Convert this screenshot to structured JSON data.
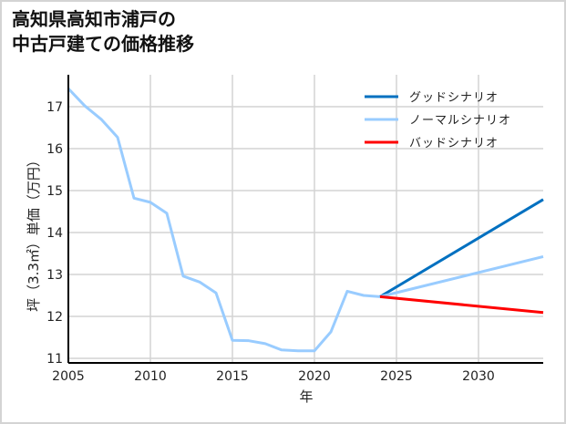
{
  "title_lines": [
    "高知県高知市浦戸の",
    "中古戸建ての価格推移"
  ],
  "chart_data": {
    "type": "line",
    "title": "高知県高知市浦戸の中古戸建ての価格推移",
    "xlabel": "年",
    "ylabel": "坪（3.3㎡）単価（万円）",
    "xlim": [
      2005,
      2034
    ],
    "ylim": [
      10.9,
      17.6
    ],
    "xticks": [
      2005,
      2010,
      2015,
      2020,
      2025,
      2030
    ],
    "yticks": [
      11,
      12,
      13,
      14,
      15,
      16,
      17
    ],
    "grid": true,
    "legend_position": "upper right",
    "historical": {
      "x": [
        2005,
        2006,
        2007,
        2008,
        2009,
        2010,
        2011,
        2012,
        2013,
        2014,
        2015,
        2016,
        2017,
        2018,
        2019,
        2020,
        2021,
        2022,
        2023,
        2024
      ],
      "values": [
        17.43,
        17.02,
        16.7,
        16.27,
        14.82,
        14.72,
        14.46,
        12.96,
        12.82,
        12.56,
        11.43,
        11.42,
        11.35,
        11.2,
        11.18,
        11.18,
        11.63,
        12.6,
        12.5,
        12.47
      ],
      "color": "#99ccff"
    },
    "series": [
      {
        "name": "グッドシナリオ",
        "x": [
          2024,
          2034
        ],
        "values": [
          12.47,
          14.8
        ],
        "color": "#0070c0"
      },
      {
        "name": "ノーマルシナリオ",
        "x": [
          2024,
          2034
        ],
        "values": [
          12.47,
          13.43
        ],
        "color": "#99ccff"
      },
      {
        "name": "バッドシナリオ",
        "x": [
          2024,
          2034
        ],
        "values": [
          12.47,
          12.09
        ],
        "color": "#ff0000"
      }
    ]
  }
}
